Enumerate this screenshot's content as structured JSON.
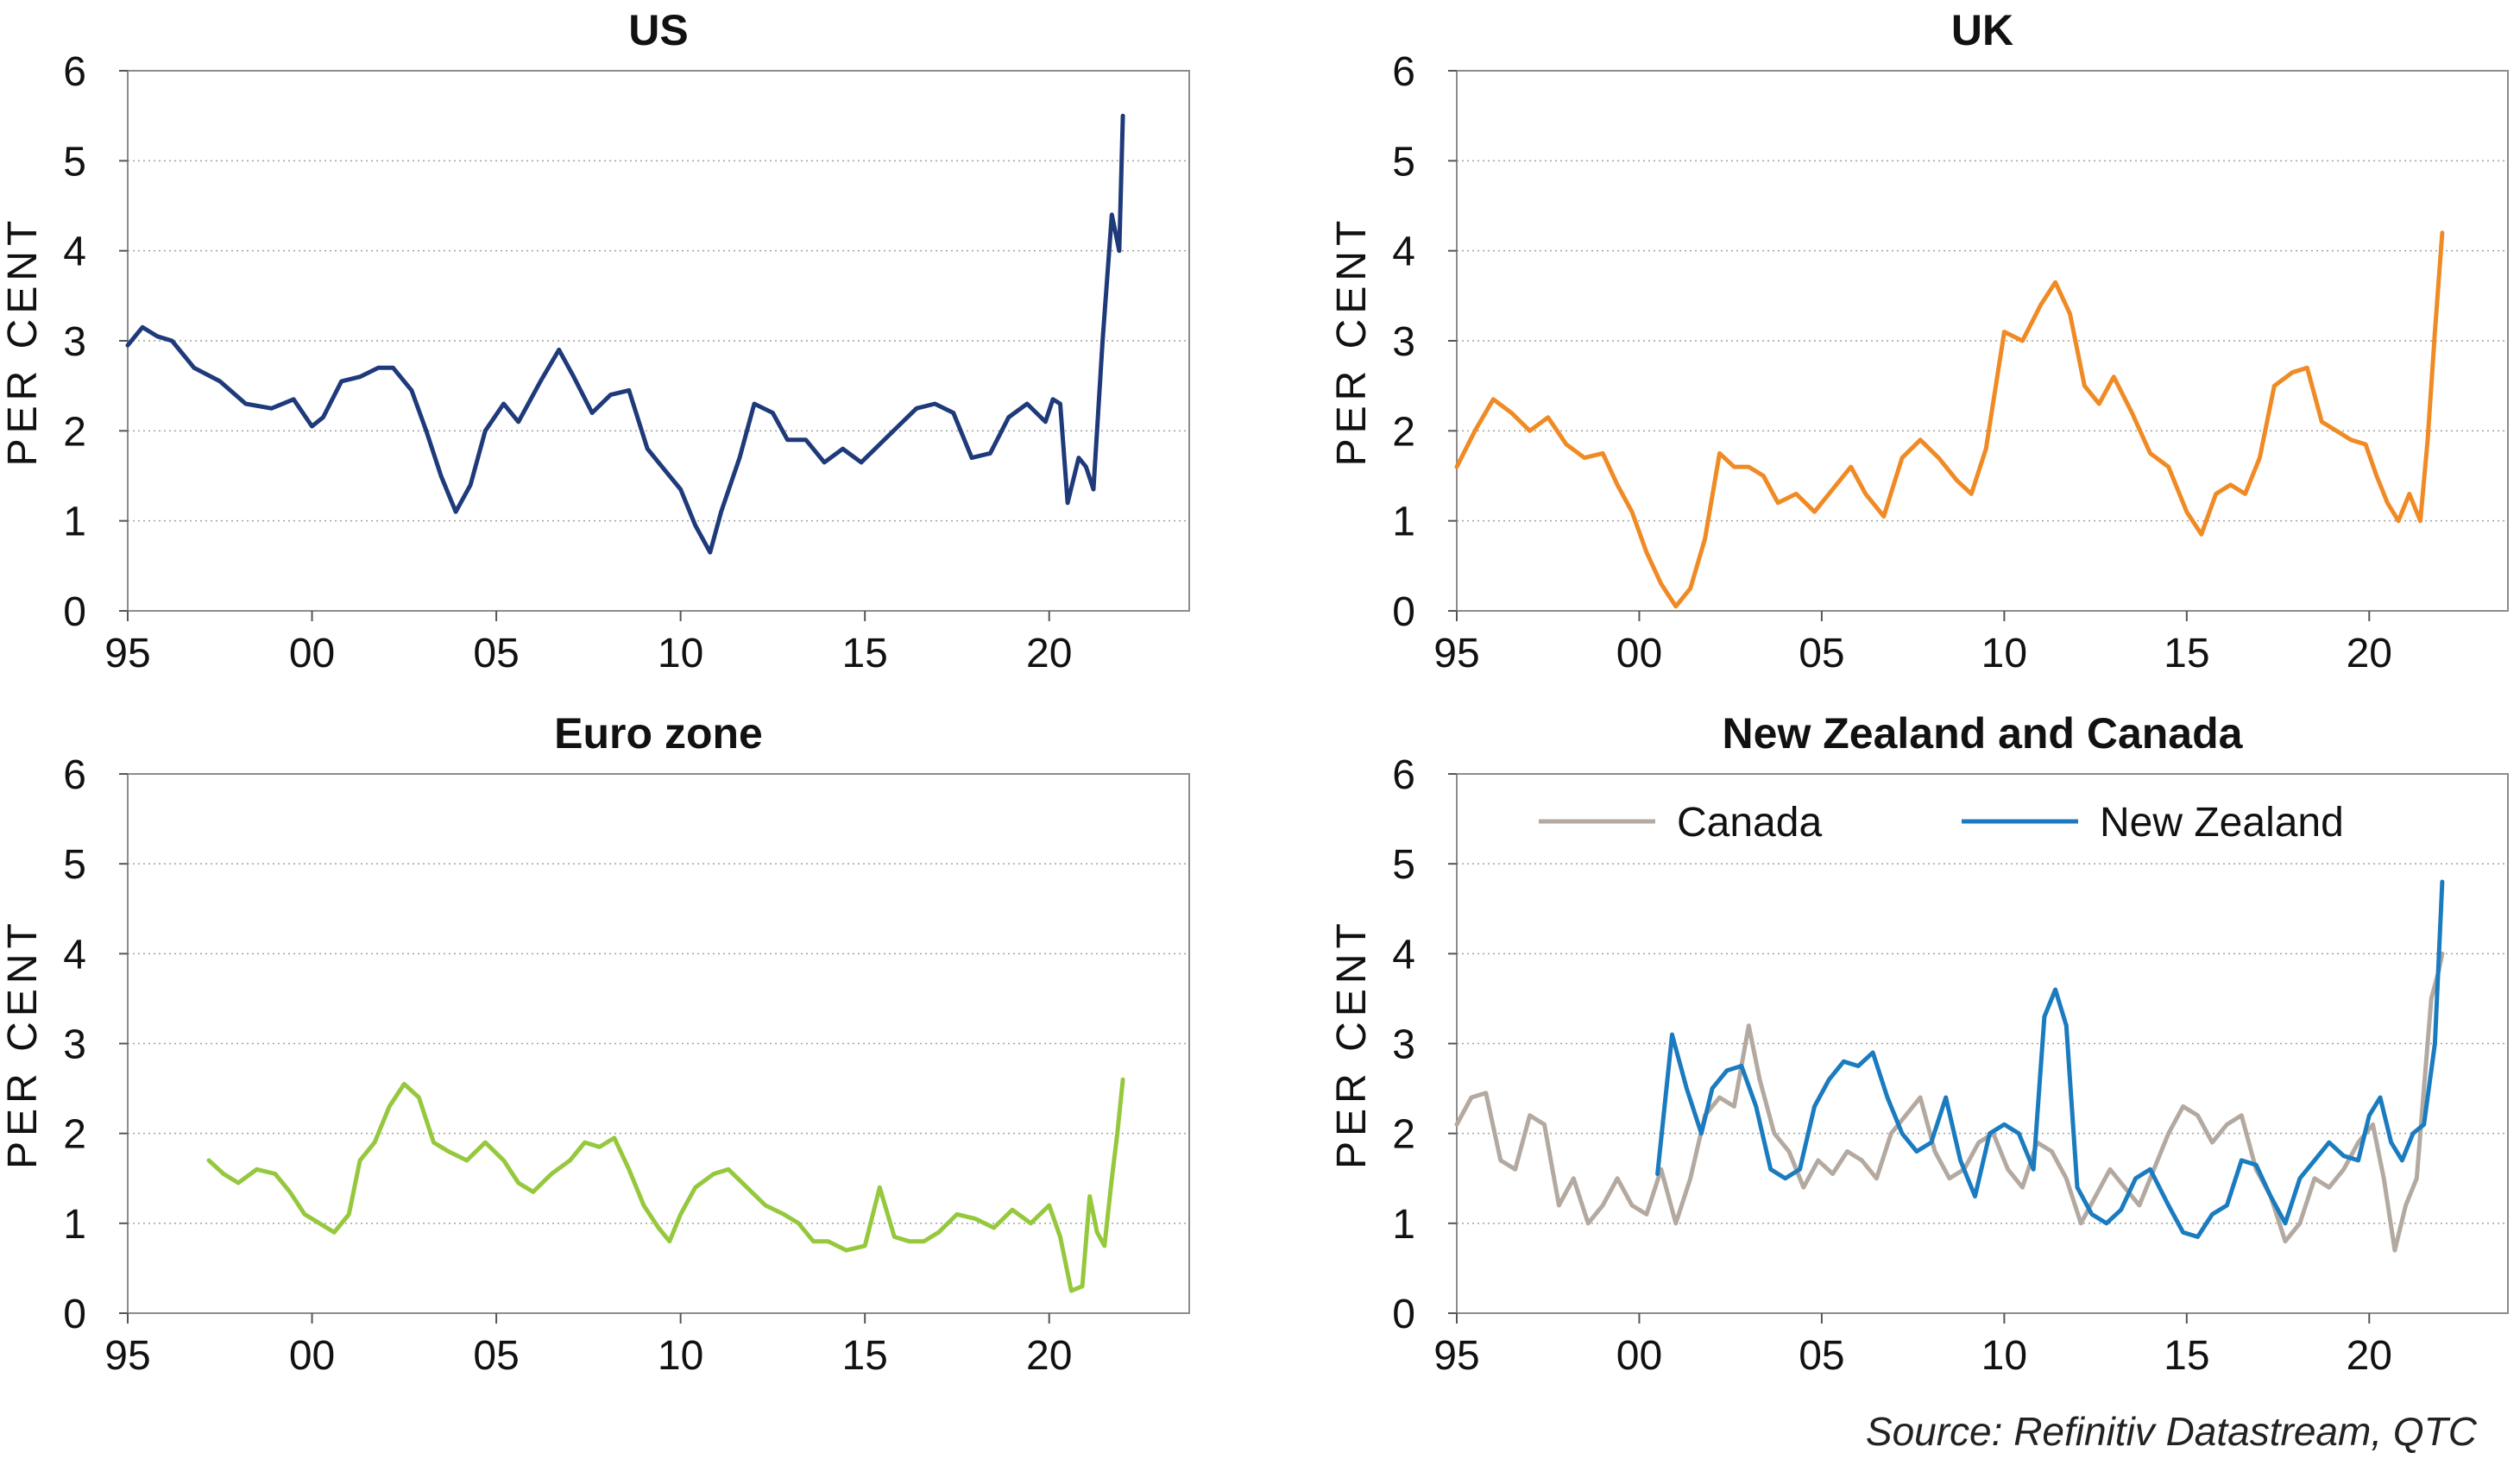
{
  "source": "Source: Refinitiv Datastream, QTC",
  "chart_data": [
    {
      "type": "line",
      "title": "US",
      "ylabel": "PER CENT",
      "ylim": [
        0,
        6
      ],
      "xlim": [
        1995,
        2023.8
      ],
      "yticks": [
        "0",
        "1",
        "2",
        "3",
        "4",
        "5",
        "6"
      ],
      "xtick_values": [
        1995,
        2000,
        2005,
        2010,
        2015,
        2020
      ],
      "xtick_labels": [
        "95",
        "00",
        "05",
        "10",
        "15",
        "20"
      ],
      "grid": "horizontal dotted",
      "series": [
        {
          "color": "#1f3a7a",
          "x": [
            1995.0,
            1995.4,
            1995.8,
            1996.2,
            1996.8,
            1997.5,
            1998.2,
            1998.9,
            1999.5,
            2000.0,
            2000.3,
            2000.8,
            2001.3,
            2001.8,
            2002.2,
            2002.7,
            2003.1,
            2003.5,
            2003.9,
            2004.3,
            2004.7,
            2005.2,
            2005.6,
            2006.2,
            2006.7,
            2007.1,
            2007.6,
            2008.1,
            2008.6,
            2009.1,
            2009.6,
            2010.0,
            2010.4,
            2010.8,
            2011.1,
            2011.6,
            2012.0,
            2012.5,
            2012.9,
            2013.4,
            2013.9,
            2014.4,
            2014.9,
            2015.4,
            2015.9,
            2016.4,
            2016.9,
            2017.4,
            2017.9,
            2018.4,
            2018.9,
            2019.4,
            2019.9,
            2020.1,
            2020.3,
            2020.5,
            2020.8,
            2021.0,
            2021.2,
            2021.45,
            2021.7,
            2021.9,
            2022.0
          ],
          "y": [
            2.95,
            3.15,
            3.05,
            3.0,
            2.7,
            2.55,
            2.3,
            2.25,
            2.35,
            2.05,
            2.15,
            2.55,
            2.6,
            2.7,
            2.7,
            2.45,
            2.0,
            1.5,
            1.1,
            1.4,
            2.0,
            2.3,
            2.1,
            2.55,
            2.9,
            2.6,
            2.2,
            2.4,
            2.45,
            1.8,
            1.55,
            1.35,
            0.95,
            0.65,
            1.1,
            1.7,
            2.3,
            2.2,
            1.9,
            1.9,
            1.65,
            1.8,
            1.65,
            1.85,
            2.05,
            2.25,
            2.3,
            2.2,
            1.7,
            1.75,
            2.15,
            2.3,
            2.1,
            2.35,
            2.3,
            1.2,
            1.7,
            1.6,
            1.35,
            3.0,
            4.4,
            4.0,
            5.5
          ]
        }
      ]
    },
    {
      "type": "line",
      "title": "UK",
      "ylabel": "PER CENT",
      "ylim": [
        0,
        6
      ],
      "xlim": [
        1995,
        2023.8
      ],
      "yticks": [
        "0",
        "1",
        "2",
        "3",
        "4",
        "5",
        "6"
      ],
      "xtick_values": [
        1995,
        2000,
        2005,
        2010,
        2015,
        2020
      ],
      "xtick_labels": [
        "95",
        "00",
        "05",
        "10",
        "15",
        "20"
      ],
      "grid": "horizontal dotted",
      "series": [
        {
          "color": "#f08a24",
          "x": [
            1995.0,
            1995.5,
            1996.0,
            1996.5,
            1997.0,
            1997.5,
            1998.0,
            1998.5,
            1999.0,
            1999.4,
            1999.8,
            2000.2,
            2000.6,
            2001.0,
            2001.4,
            2001.8,
            2002.2,
            2002.6,
            2003.0,
            2003.4,
            2003.8,
            2004.3,
            2004.8,
            2005.3,
            2005.8,
            2006.2,
            2006.7,
            2007.2,
            2007.7,
            2008.2,
            2008.7,
            2009.1,
            2009.5,
            2010.0,
            2010.5,
            2011.0,
            2011.4,
            2011.8,
            2012.2,
            2012.6,
            2013.0,
            2013.5,
            2014.0,
            2014.5,
            2015.0,
            2015.4,
            2015.8,
            2016.2,
            2016.6,
            2017.0,
            2017.4,
            2017.9,
            2018.3,
            2018.7,
            2019.1,
            2019.5,
            2019.9,
            2020.2,
            2020.5,
            2020.8,
            2021.1,
            2021.4,
            2021.6,
            2021.8,
            2022.0
          ],
          "y": [
            1.6,
            2.0,
            2.35,
            2.2,
            2.0,
            2.15,
            1.85,
            1.7,
            1.75,
            1.4,
            1.1,
            0.65,
            0.3,
            0.05,
            0.25,
            0.8,
            1.75,
            1.6,
            1.6,
            1.5,
            1.2,
            1.3,
            1.1,
            1.35,
            1.6,
            1.3,
            1.05,
            1.7,
            1.9,
            1.7,
            1.45,
            1.3,
            1.8,
            3.1,
            3.0,
            3.4,
            3.65,
            3.3,
            2.5,
            2.3,
            2.6,
            2.2,
            1.75,
            1.6,
            1.1,
            0.85,
            1.3,
            1.4,
            1.3,
            1.7,
            2.5,
            2.65,
            2.7,
            2.1,
            2.0,
            1.9,
            1.85,
            1.5,
            1.2,
            1.0,
            1.3,
            1.0,
            1.9,
            3.1,
            4.2
          ]
        }
      ]
    },
    {
      "type": "line",
      "title": "Euro zone",
      "ylabel": "PER CENT",
      "ylim": [
        0,
        6
      ],
      "xlim": [
        1995,
        2023.8
      ],
      "yticks": [
        "0",
        "1",
        "2",
        "3",
        "4",
        "5",
        "6"
      ],
      "xtick_values": [
        1995,
        2000,
        2005,
        2010,
        2015,
        2020
      ],
      "xtick_labels": [
        "95",
        "00",
        "05",
        "10",
        "15",
        "20"
      ],
      "grid": "horizontal dotted",
      "series": [
        {
          "color": "#95c83d",
          "x": [
            1997.2,
            1997.6,
            1998.0,
            1998.5,
            1999.0,
            1999.4,
            1999.8,
            2000.2,
            2000.6,
            2001.0,
            2001.3,
            2001.7,
            2002.1,
            2002.5,
            2002.9,
            2003.3,
            2003.7,
            2004.2,
            2004.7,
            2005.2,
            2005.6,
            2006.0,
            2006.5,
            2007.0,
            2007.4,
            2007.8,
            2008.2,
            2008.6,
            2009.0,
            2009.4,
            2009.7,
            2010.0,
            2010.4,
            2010.9,
            2011.3,
            2011.8,
            2012.3,
            2012.8,
            2013.2,
            2013.6,
            2014.0,
            2014.5,
            2015.0,
            2015.4,
            2015.8,
            2016.2,
            2016.6,
            2017.0,
            2017.5,
            2018.0,
            2018.5,
            2019.0,
            2019.5,
            2020.0,
            2020.3,
            2020.6,
            2020.9,
            2021.1,
            2021.3,
            2021.5,
            2021.7,
            2021.85,
            2022.0
          ],
          "y": [
            1.7,
            1.55,
            1.45,
            1.6,
            1.55,
            1.35,
            1.1,
            1.0,
            0.9,
            1.1,
            1.7,
            1.9,
            2.3,
            2.55,
            2.4,
            1.9,
            1.8,
            1.7,
            1.9,
            1.7,
            1.45,
            1.35,
            1.55,
            1.7,
            1.9,
            1.85,
            1.95,
            1.6,
            1.2,
            0.95,
            0.8,
            1.1,
            1.4,
            1.55,
            1.6,
            1.4,
            1.2,
            1.1,
            1.0,
            0.8,
            0.8,
            0.7,
            0.75,
            1.4,
            0.85,
            0.8,
            0.8,
            0.9,
            1.1,
            1.05,
            0.95,
            1.15,
            1.0,
            1.2,
            0.85,
            0.25,
            0.3,
            1.3,
            0.9,
            0.75,
            1.5,
            2.0,
            2.6
          ]
        }
      ]
    },
    {
      "type": "line",
      "title": "New Zealand and Canada",
      "ylabel": "PER CENT",
      "ylim": [
        0,
        6
      ],
      "xlim": [
        1995,
        2023.8
      ],
      "yticks": [
        "0",
        "1",
        "2",
        "3",
        "4",
        "5",
        "6"
      ],
      "xtick_values": [
        1995,
        2000,
        2005,
        2010,
        2015,
        2020
      ],
      "xtick_labels": [
        "95",
        "00",
        "05",
        "10",
        "15",
        "20"
      ],
      "grid": "horizontal dotted",
      "legend": "top",
      "series": [
        {
          "name": "Canada",
          "color": "#b3a9a0",
          "x": [
            1995.0,
            1995.4,
            1995.8,
            1996.2,
            1996.6,
            1997.0,
            1997.4,
            1997.8,
            1998.2,
            1998.6,
            1999.0,
            1999.4,
            1999.8,
            2000.2,
            2000.6,
            2001.0,
            2001.4,
            2001.8,
            2002.2,
            2002.6,
            2003.0,
            2003.3,
            2003.7,
            2004.1,
            2004.5,
            2004.9,
            2005.3,
            2005.7,
            2006.1,
            2006.5,
            2006.9,
            2007.3,
            2007.7,
            2008.1,
            2008.5,
            2008.9,
            2009.3,
            2009.7,
            2010.1,
            2010.5,
            2010.9,
            2011.3,
            2011.7,
            2012.1,
            2012.5,
            2012.9,
            2013.3,
            2013.7,
            2014.1,
            2014.5,
            2014.9,
            2015.3,
            2015.7,
            2016.1,
            2016.5,
            2016.9,
            2017.3,
            2017.7,
            2018.1,
            2018.5,
            2018.9,
            2019.3,
            2019.7,
            2020.1,
            2020.4,
            2020.7,
            2021.0,
            2021.3,
            2021.5,
            2021.7,
            2021.9,
            2022.0
          ],
          "y": [
            2.1,
            2.4,
            2.45,
            1.7,
            1.6,
            2.2,
            2.1,
            1.2,
            1.5,
            1.0,
            1.2,
            1.5,
            1.2,
            1.1,
            1.6,
            1.0,
            1.5,
            2.2,
            2.4,
            2.3,
            3.2,
            2.6,
            2.0,
            1.8,
            1.4,
            1.7,
            1.55,
            1.8,
            1.7,
            1.5,
            2.0,
            2.2,
            2.4,
            1.8,
            1.5,
            1.6,
            1.9,
            2.0,
            1.6,
            1.4,
            1.9,
            1.8,
            1.5,
            1.0,
            1.3,
            1.6,
            1.4,
            1.2,
            1.6,
            2.0,
            2.3,
            2.2,
            1.9,
            2.1,
            2.2,
            1.6,
            1.3,
            0.8,
            1.0,
            1.5,
            1.4,
            1.6,
            1.9,
            2.1,
            1.5,
            0.7,
            1.2,
            1.5,
            2.5,
            3.5,
            3.8,
            4.0
          ]
        },
        {
          "name": "New Zealand",
          "color": "#1a7bbf",
          "x": [
            2000.5,
            2000.9,
            2001.3,
            2001.7,
            2002.0,
            2002.4,
            2002.8,
            2003.2,
            2003.6,
            2004.0,
            2004.4,
            2004.8,
            2005.2,
            2005.6,
            2006.0,
            2006.4,
            2006.8,
            2007.2,
            2007.6,
            2008.0,
            2008.4,
            2008.8,
            2009.2,
            2009.6,
            2010.0,
            2010.4,
            2010.8,
            2011.1,
            2011.4,
            2011.7,
            2012.0,
            2012.4,
            2012.8,
            2013.2,
            2013.6,
            2014.0,
            2014.5,
            2014.9,
            2015.3,
            2015.7,
            2016.1,
            2016.5,
            2016.9,
            2017.3,
            2017.7,
            2018.1,
            2018.5,
            2018.9,
            2019.3,
            2019.7,
            2020.0,
            2020.3,
            2020.6,
            2020.9,
            2021.2,
            2021.5,
            2021.8,
            2022.0
          ],
          "y": [
            1.55,
            3.1,
            2.5,
            2.0,
            2.5,
            2.7,
            2.75,
            2.3,
            1.6,
            1.5,
            1.6,
            2.3,
            2.6,
            2.8,
            2.75,
            2.9,
            2.4,
            2.0,
            1.8,
            1.9,
            2.4,
            1.7,
            1.3,
            2.0,
            2.1,
            2.0,
            1.6,
            3.3,
            3.6,
            3.2,
            1.4,
            1.1,
            1.0,
            1.15,
            1.5,
            1.6,
            1.2,
            0.9,
            0.85,
            1.1,
            1.2,
            1.7,
            1.65,
            1.3,
            1.0,
            1.5,
            1.7,
            1.9,
            1.75,
            1.7,
            2.2,
            2.4,
            1.9,
            1.7,
            2.0,
            2.1,
            3.0,
            4.8
          ]
        }
      ]
    }
  ]
}
